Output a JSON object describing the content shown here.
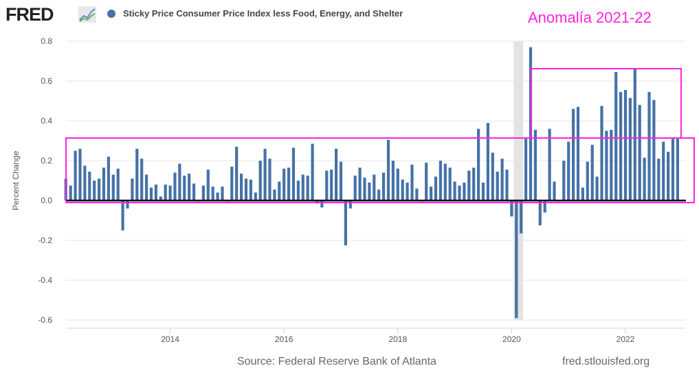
{
  "header": {
    "logo": "FRED",
    "logo_icon": "chart-line-icon",
    "legend_label": "Sticky Price Consumer Price Index less Food, Energy, and Shelter",
    "annotation": "Anomalía 2021-22"
  },
  "footer": {
    "source": "Source: Federal Reserve Bank of Atlanta",
    "site": "fred.stlouisfed.org"
  },
  "colors": {
    "bar": "#4572a7",
    "highlight": "#ff22dd",
    "recession": "#e3e3e3"
  },
  "chart_data": {
    "type": "bar",
    "title": "Sticky Price Consumer Price Index less Food, Energy, and Shelter",
    "xlabel": "",
    "ylabel": "Percent Change",
    "ylim": [
      -0.6,
      0.8
    ],
    "yticks": [
      "0.8",
      "0.6",
      "0.4",
      "0.2",
      "0.0",
      "-0.2",
      "-0.4",
      "-0.6"
    ],
    "xticks": [
      "2014",
      "2016",
      "2018",
      "2020",
      "2022"
    ],
    "start": "2012-04",
    "frequency": "monthly",
    "grid": true,
    "recession_shading": [
      "2020-02",
      "2020-04"
    ],
    "annotation_boxes": [
      "2012-04 to 2023-01 band -0.01 to 0.31",
      "2020-05 to 2022-12 band 0.31 to 0.66"
    ],
    "values": [
      0.11,
      0.075,
      0.25,
      0.26,
      0.175,
      0.145,
      0.1,
      0.11,
      0.165,
      0.22,
      0.13,
      0.16,
      -0.15,
      -0.04,
      0.11,
      0.26,
      0.21,
      0.13,
      0.065,
      0.08,
      0.02,
      0.08,
      0.075,
      0.14,
      0.185,
      0.125,
      0.135,
      0.085,
      -0.005,
      0.075,
      0.155,
      0.07,
      0.04,
      0.07,
      -0.005,
      0.17,
      0.27,
      0.135,
      0.11,
      0.105,
      0.04,
      0.2,
      0.26,
      0.21,
      0.055,
      0.095,
      0.16,
      0.165,
      0.265,
      0.1,
      0.13,
      0.125,
      0.285,
      -0.015,
      -0.035,
      0.15,
      0.155,
      0.26,
      0.195,
      -0.225,
      -0.04,
      0.125,
      0.165,
      0.115,
      0.09,
      0.13,
      0.055,
      0.14,
      0.305,
      0.2,
      0.16,
      0.105,
      0.09,
      0.18,
      0.06,
      -0.005,
      0.19,
      0.07,
      0.12,
      0.2,
      0.185,
      0.165,
      0.095,
      0.075,
      0.09,
      0.15,
      0.165,
      0.36,
      0.09,
      0.39,
      0.24,
      0.145,
      0.21,
      0.155,
      -0.08,
      -0.59,
      -0.165,
      0.31,
      0.77,
      0.355,
      -0.125,
      -0.06,
      0.36,
      0.095,
      -0.005,
      0.2,
      0.295,
      0.46,
      0.47,
      0.065,
      0.195,
      0.28,
      0.12,
      0.475,
      0.35,
      0.355,
      0.645,
      0.545,
      0.555,
      0.515,
      0.665,
      0.48,
      0.215,
      0.545,
      0.505,
      0.21,
      0.295,
      0.245,
      0.31,
      0.31
    ]
  }
}
